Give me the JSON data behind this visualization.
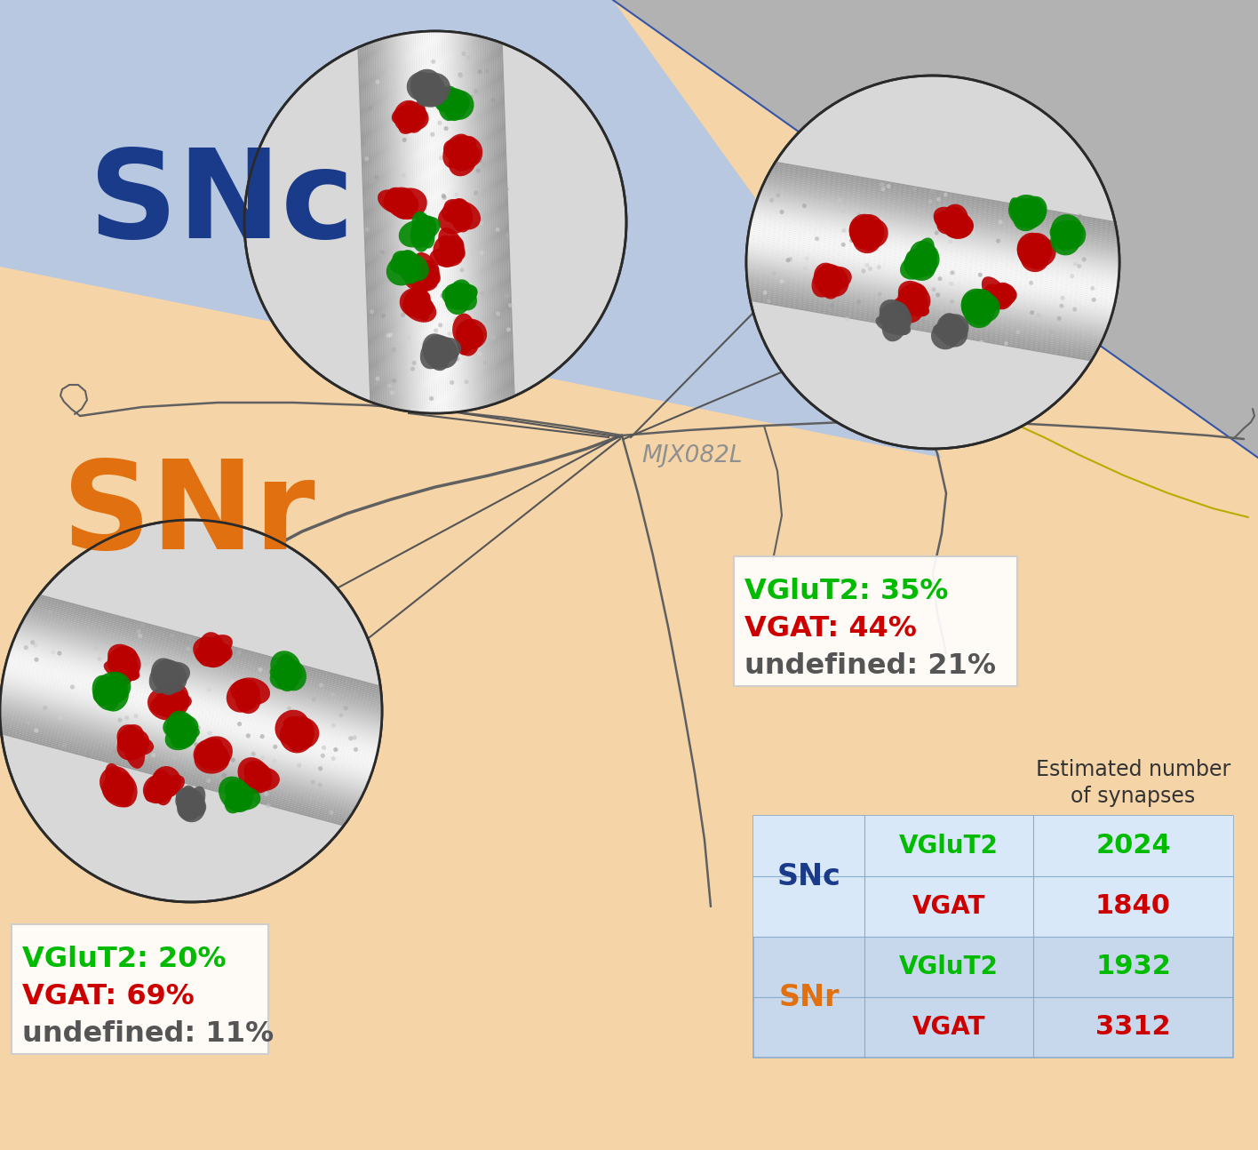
{
  "snc_color": "#b8c8e0",
  "snr_color": "#f5d5a8",
  "gray_color": "#b2b2b2",
  "white": "#ffffff",
  "snc_label": "SNc",
  "snr_label": "SNr",
  "snc_label_color": "#1a3a8a",
  "snr_label_color": "#e07010",
  "neuron_label": "MJX082L",
  "neuron_color": "#909090",
  "green": "#00cc00",
  "red": "#cc0000",
  "dark_gray_blob": "#555555",
  "line_color": "#606060",
  "snc_stats": [
    "VGluT2: 35%",
    "VGAT: 44%",
    "undefined: 21%"
  ],
  "snr_stats": [
    "VGluT2: 20%",
    "VGAT: 69%",
    "undefined: 11%"
  ],
  "stats_colors": [
    "#00bb00",
    "#cc0000",
    "#555555"
  ],
  "table_header": "Estimated number\nof synapses",
  "table_region_labels": [
    "SNc",
    "SNr"
  ],
  "table_region_colors": [
    "#1a3a8a",
    "#e07010"
  ],
  "table_types": [
    "VGluT2",
    "VGAT",
    "VGluT2",
    "VGAT"
  ],
  "table_type_colors": [
    "#00bb00",
    "#cc0000",
    "#00bb00",
    "#cc0000"
  ],
  "table_values": [
    "2024",
    "1840",
    "1932",
    "3312"
  ],
  "table_value_colors": [
    "#00bb00",
    "#cc0000",
    "#00bb00",
    "#cc0000"
  ],
  "table_bg": "#c8d8ec",
  "table_bg_snc": "#d8e8f8",
  "figsize": [
    14.16,
    12.94
  ],
  "dpi": 100
}
